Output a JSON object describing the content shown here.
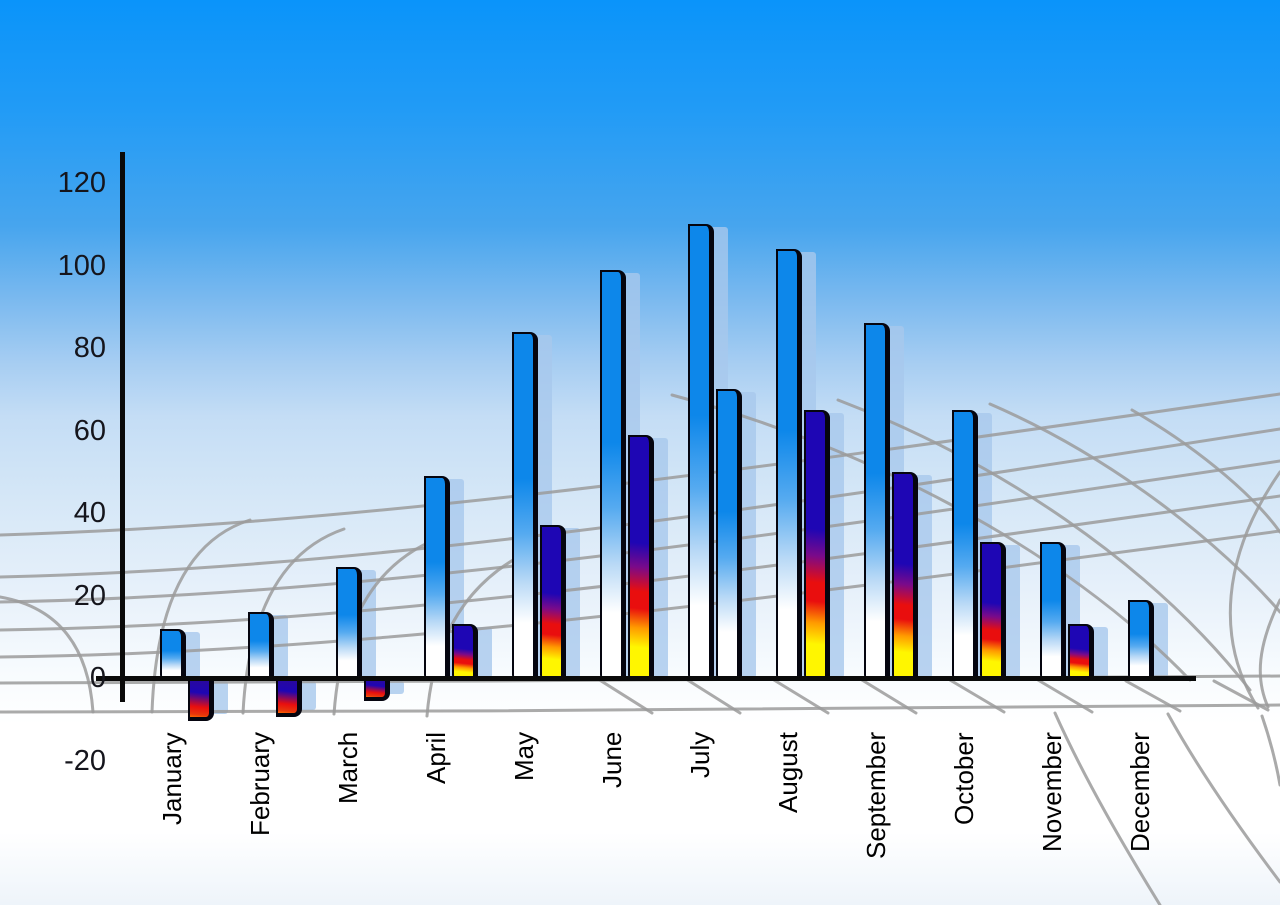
{
  "chart_data": {
    "type": "bar",
    "title": "",
    "categories": [
      "January",
      "February",
      "March",
      "April",
      "May",
      "June",
      "July",
      "August",
      "September",
      "October",
      "November",
      "December"
    ],
    "series": [
      {
        "name": "series-1-blue",
        "values": [
          12,
          16,
          27,
          49,
          84,
          99,
          110,
          104,
          86,
          65,
          33,
          19
        ]
      },
      {
        "name": "series-2-fire",
        "values": [
          -10,
          -9,
          -5,
          13,
          37,
          59,
          70,
          65,
          50,
          33,
          13,
          null
        ],
        "bar_styles": [
          "fire",
          "fire",
          "fire",
          "fire",
          "fire",
          "fire",
          "blue",
          "fire",
          "fire",
          "fire",
          "fire",
          null
        ]
      }
    ],
    "y_axis": {
      "ticks": [
        120,
        100,
        80,
        60,
        40,
        20,
        0,
        -20
      ],
      "min": -20,
      "max": 120
    },
    "x_axis": {
      "label_rotation_deg": -90
    },
    "legend": "none",
    "grid": "decorative perspective floor grid, gray curved lines"
  },
  "colors": {
    "sky_top": "#0a94fa",
    "bar_blue": "#0d87ea",
    "fire_navy": "#1e06b4",
    "fire_red": "#e90e0e",
    "fire_yellow": "#fff600",
    "shadow": "rgba(168,200,236,0.8)",
    "grid": "#9b9b9b",
    "axis": "#0a0a0a",
    "text": "#15151c"
  }
}
